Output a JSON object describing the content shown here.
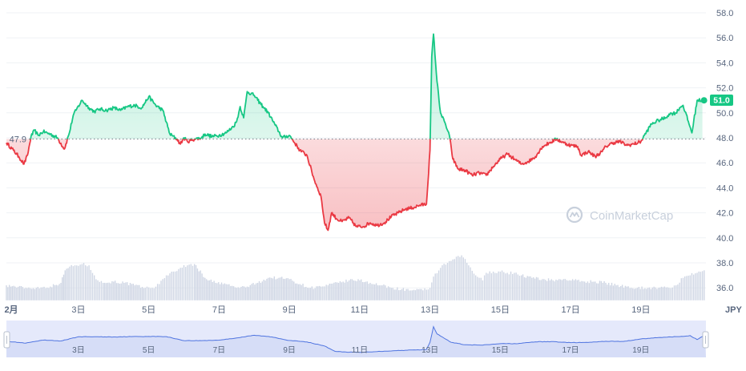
{
  "chart_data": {
    "type": "line",
    "currency": "JPY",
    "ylim": [
      35,
      58.5
    ],
    "yticks": [
      "58.0",
      "56.0",
      "54.0",
      "52.0",
      "50.0",
      "48.0",
      "46.0",
      "44.0",
      "42.0",
      "40.0",
      "38.0",
      "36.0"
    ],
    "reference": {
      "value": 47.9,
      "label": "47.9"
    },
    "last": {
      "value": 51.0,
      "label": "51.0"
    },
    "xticks": [
      {
        "day": 1,
        "label": "2月"
      },
      {
        "day": 3,
        "label": "3日"
      },
      {
        "day": 5,
        "label": "5日"
      },
      {
        "day": 7,
        "label": "7日"
      },
      {
        "day": 9,
        "label": "9日"
      },
      {
        "day": 11,
        "label": "11日"
      },
      {
        "day": 13,
        "label": "13日"
      },
      {
        "day": 15,
        "label": "15日"
      },
      {
        "day": 17,
        "label": "17日"
      },
      {
        "day": 19,
        "label": "19日"
      }
    ],
    "xrange": [
      0.95,
      20.85
    ],
    "price": {
      "x": [
        0.95,
        1.15,
        1.3,
        1.45,
        1.55,
        1.65,
        1.75,
        1.85,
        2.0,
        2.2,
        2.4,
        2.6,
        2.75,
        2.85,
        2.95,
        3.1,
        3.3,
        3.45,
        3.6,
        3.8,
        4.0,
        4.2,
        4.4,
        4.6,
        4.8,
        5.0,
        5.2,
        5.4,
        5.6,
        5.8,
        5.9,
        6.0,
        6.1,
        6.3,
        6.5,
        6.6,
        6.8,
        7.0,
        7.2,
        7.4,
        7.5,
        7.6,
        7.7,
        7.8,
        8.0,
        8.1,
        8.25,
        8.4,
        8.6,
        8.8,
        9.0,
        9.1,
        9.3,
        9.5,
        9.7,
        9.9,
        10.0,
        10.1,
        10.2,
        10.35,
        10.5,
        10.7,
        10.9,
        11.1,
        11.3,
        11.5,
        11.7,
        11.9,
        12.1,
        12.3,
        12.5,
        12.7,
        12.9,
        13.0,
        13.05,
        13.1,
        13.2,
        13.3,
        13.45,
        13.55,
        13.65,
        13.8,
        14.0,
        14.2,
        14.4,
        14.6,
        14.8,
        15.0,
        15.2,
        15.4,
        15.6,
        15.8,
        16.0,
        16.2,
        16.4,
        16.6,
        16.8,
        17.0,
        17.2,
        17.3,
        17.5,
        17.7,
        17.9,
        18.0,
        18.2,
        18.4,
        18.6,
        18.8,
        19.0,
        19.1,
        19.3,
        19.5,
        19.7,
        19.8,
        20.0,
        20.1,
        20.2,
        20.35,
        20.45,
        20.6,
        20.75
      ],
      "y": [
        47.6,
        47.0,
        46.5,
        45.9,
        46.6,
        48.1,
        48.6,
        48.2,
        48.5,
        48.3,
        48.0,
        47.1,
        48.5,
        49.8,
        50.3,
        51.0,
        50.4,
        50.1,
        50.3,
        50.2,
        50.4,
        50.2,
        50.5,
        50.6,
        50.4,
        51.3,
        50.6,
        50.2,
        48.3,
        47.9,
        47.5,
        48.0,
        47.7,
        47.9,
        48.0,
        48.3,
        48.1,
        48.2,
        48.4,
        48.9,
        49.3,
        50.5,
        49.6,
        51.7,
        51.4,
        51.0,
        50.5,
        50.0,
        49.0,
        48.0,
        48.2,
        47.8,
        47.0,
        46.6,
        44.7,
        43.3,
        41.2,
        40.6,
        42.0,
        41.5,
        41.3,
        41.6,
        40.9,
        40.9,
        41.2,
        41.0,
        41.2,
        41.7,
        42.0,
        42.3,
        42.4,
        42.6,
        42.7,
        47.0,
        54.5,
        56.3,
        52.5,
        50.0,
        49.0,
        48.2,
        46.3,
        45.5,
        45.4,
        45.0,
        45.2,
        45.0,
        45.7,
        46.3,
        46.7,
        46.3,
        45.9,
        46.1,
        46.5,
        47.3,
        47.6,
        47.9,
        47.6,
        47.4,
        47.3,
        46.6,
        46.9,
        46.5,
        46.9,
        47.3,
        47.6,
        47.7,
        47.4,
        47.5,
        47.7,
        48.2,
        49.1,
        49.4,
        49.6,
        49.9,
        50.0,
        50.4,
        50.6,
        49.3,
        48.4,
        51.0,
        51.0
      ]
    },
    "volume": {
      "x": [
        0.95,
        1.2,
        1.5,
        1.8,
        2.2,
        2.5,
        2.62,
        2.75,
        2.9,
        3.1,
        3.3,
        3.45,
        3.55,
        3.7,
        4.0,
        4.3,
        4.6,
        4.9,
        5.1,
        5.3,
        5.5,
        5.7,
        5.9,
        6.1,
        6.3,
        6.6,
        6.9,
        7.2,
        7.5,
        7.8,
        8.1,
        8.4,
        8.7,
        9.0,
        9.3,
        9.6,
        9.9,
        10.1,
        10.4,
        10.7,
        11.0,
        11.3,
        11.6,
        11.9,
        12.2,
        12.5,
        12.8,
        13.0,
        13.1,
        13.3,
        13.5,
        13.7,
        13.9,
        14.1,
        14.3,
        14.5,
        14.6,
        14.8,
        15.0,
        15.2,
        15.4,
        15.6,
        15.9,
        16.2,
        16.5,
        16.8,
        17.1,
        17.4,
        17.7,
        18.0,
        18.3,
        18.6,
        18.9,
        19.2,
        19.5,
        19.8,
        20.0,
        20.2,
        20.4,
        20.6,
        20.8
      ],
      "y": [
        36.2,
        36.1,
        36.0,
        36.0,
        36.1,
        36.4,
        37.4,
        37.7,
        37.8,
        37.9,
        37.8,
        37.0,
        36.6,
        36.4,
        36.5,
        36.4,
        36.2,
        36.0,
        36.0,
        36.3,
        37.0,
        37.3,
        37.6,
        37.8,
        37.9,
        36.8,
        36.4,
        36.3,
        36.0,
        36.1,
        36.4,
        36.8,
        36.8,
        36.7,
        36.3,
        36.0,
        36.1,
        36.2,
        36.4,
        36.6,
        36.6,
        36.4,
        36.2,
        36.0,
        35.9,
        35.8,
        35.8,
        36.0,
        36.9,
        37.6,
        38.0,
        38.3,
        38.6,
        37.8,
        37.0,
        36.6,
        37.2,
        37.3,
        37.3,
        37.2,
        37.2,
        37.0,
        36.8,
        36.7,
        36.6,
        36.7,
        36.6,
        36.5,
        36.5,
        36.4,
        36.2,
        36.1,
        36.0,
        36.0,
        36.0,
        36.0,
        36.2,
        36.8,
        37.0,
        37.2,
        37.4
      ]
    },
    "navigator": {
      "x": [
        0.95,
        1.5,
        2.0,
        2.5,
        3.0,
        3.5,
        4.0,
        4.5,
        5.0,
        5.5,
        6.0,
        6.5,
        7.0,
        7.5,
        8.0,
        8.5,
        9.0,
        9.5,
        10.0,
        10.3,
        10.6,
        11.0,
        11.5,
        12.0,
        12.5,
        12.9,
        13.0,
        13.1,
        13.2,
        13.4,
        13.6,
        14.0,
        14.5,
        15.0,
        15.5,
        16.0,
        16.5,
        17.0,
        17.5,
        18.0,
        18.5,
        19.0,
        19.5,
        20.0,
        20.2,
        20.4,
        20.6,
        20.8
      ],
      "y": [
        47.6,
        46.5,
        48.3,
        47.8,
        50.3,
        50.3,
        50.2,
        50.4,
        50.5,
        50.4,
        48.0,
        48.0,
        48.3,
        49.6,
        51.2,
        50.2,
        48.1,
        47.2,
        44.8,
        41.6,
        41.2,
        41.0,
        41.5,
        42.0,
        42.4,
        42.7,
        47.0,
        56.3,
        52.0,
        49.5,
        47.0,
        45.5,
        45.3,
        46.2,
        46.2,
        47.3,
        47.4,
        46.8,
        46.9,
        47.6,
        47.5,
        49.0,
        49.8,
        50.4,
        50.5,
        51.0,
        48.6,
        51.0
      ]
    },
    "colors": {
      "up": "#16c784",
      "down": "#ea3943",
      "volume": "#cfd6e4",
      "navigator_line": "#4f74e0",
      "navigator_fill": "#e5e9fb",
      "grid": "#eff2f5",
      "text": "#58667e",
      "badge": "#16c784"
    },
    "watermark": "CoinMarketCap"
  }
}
